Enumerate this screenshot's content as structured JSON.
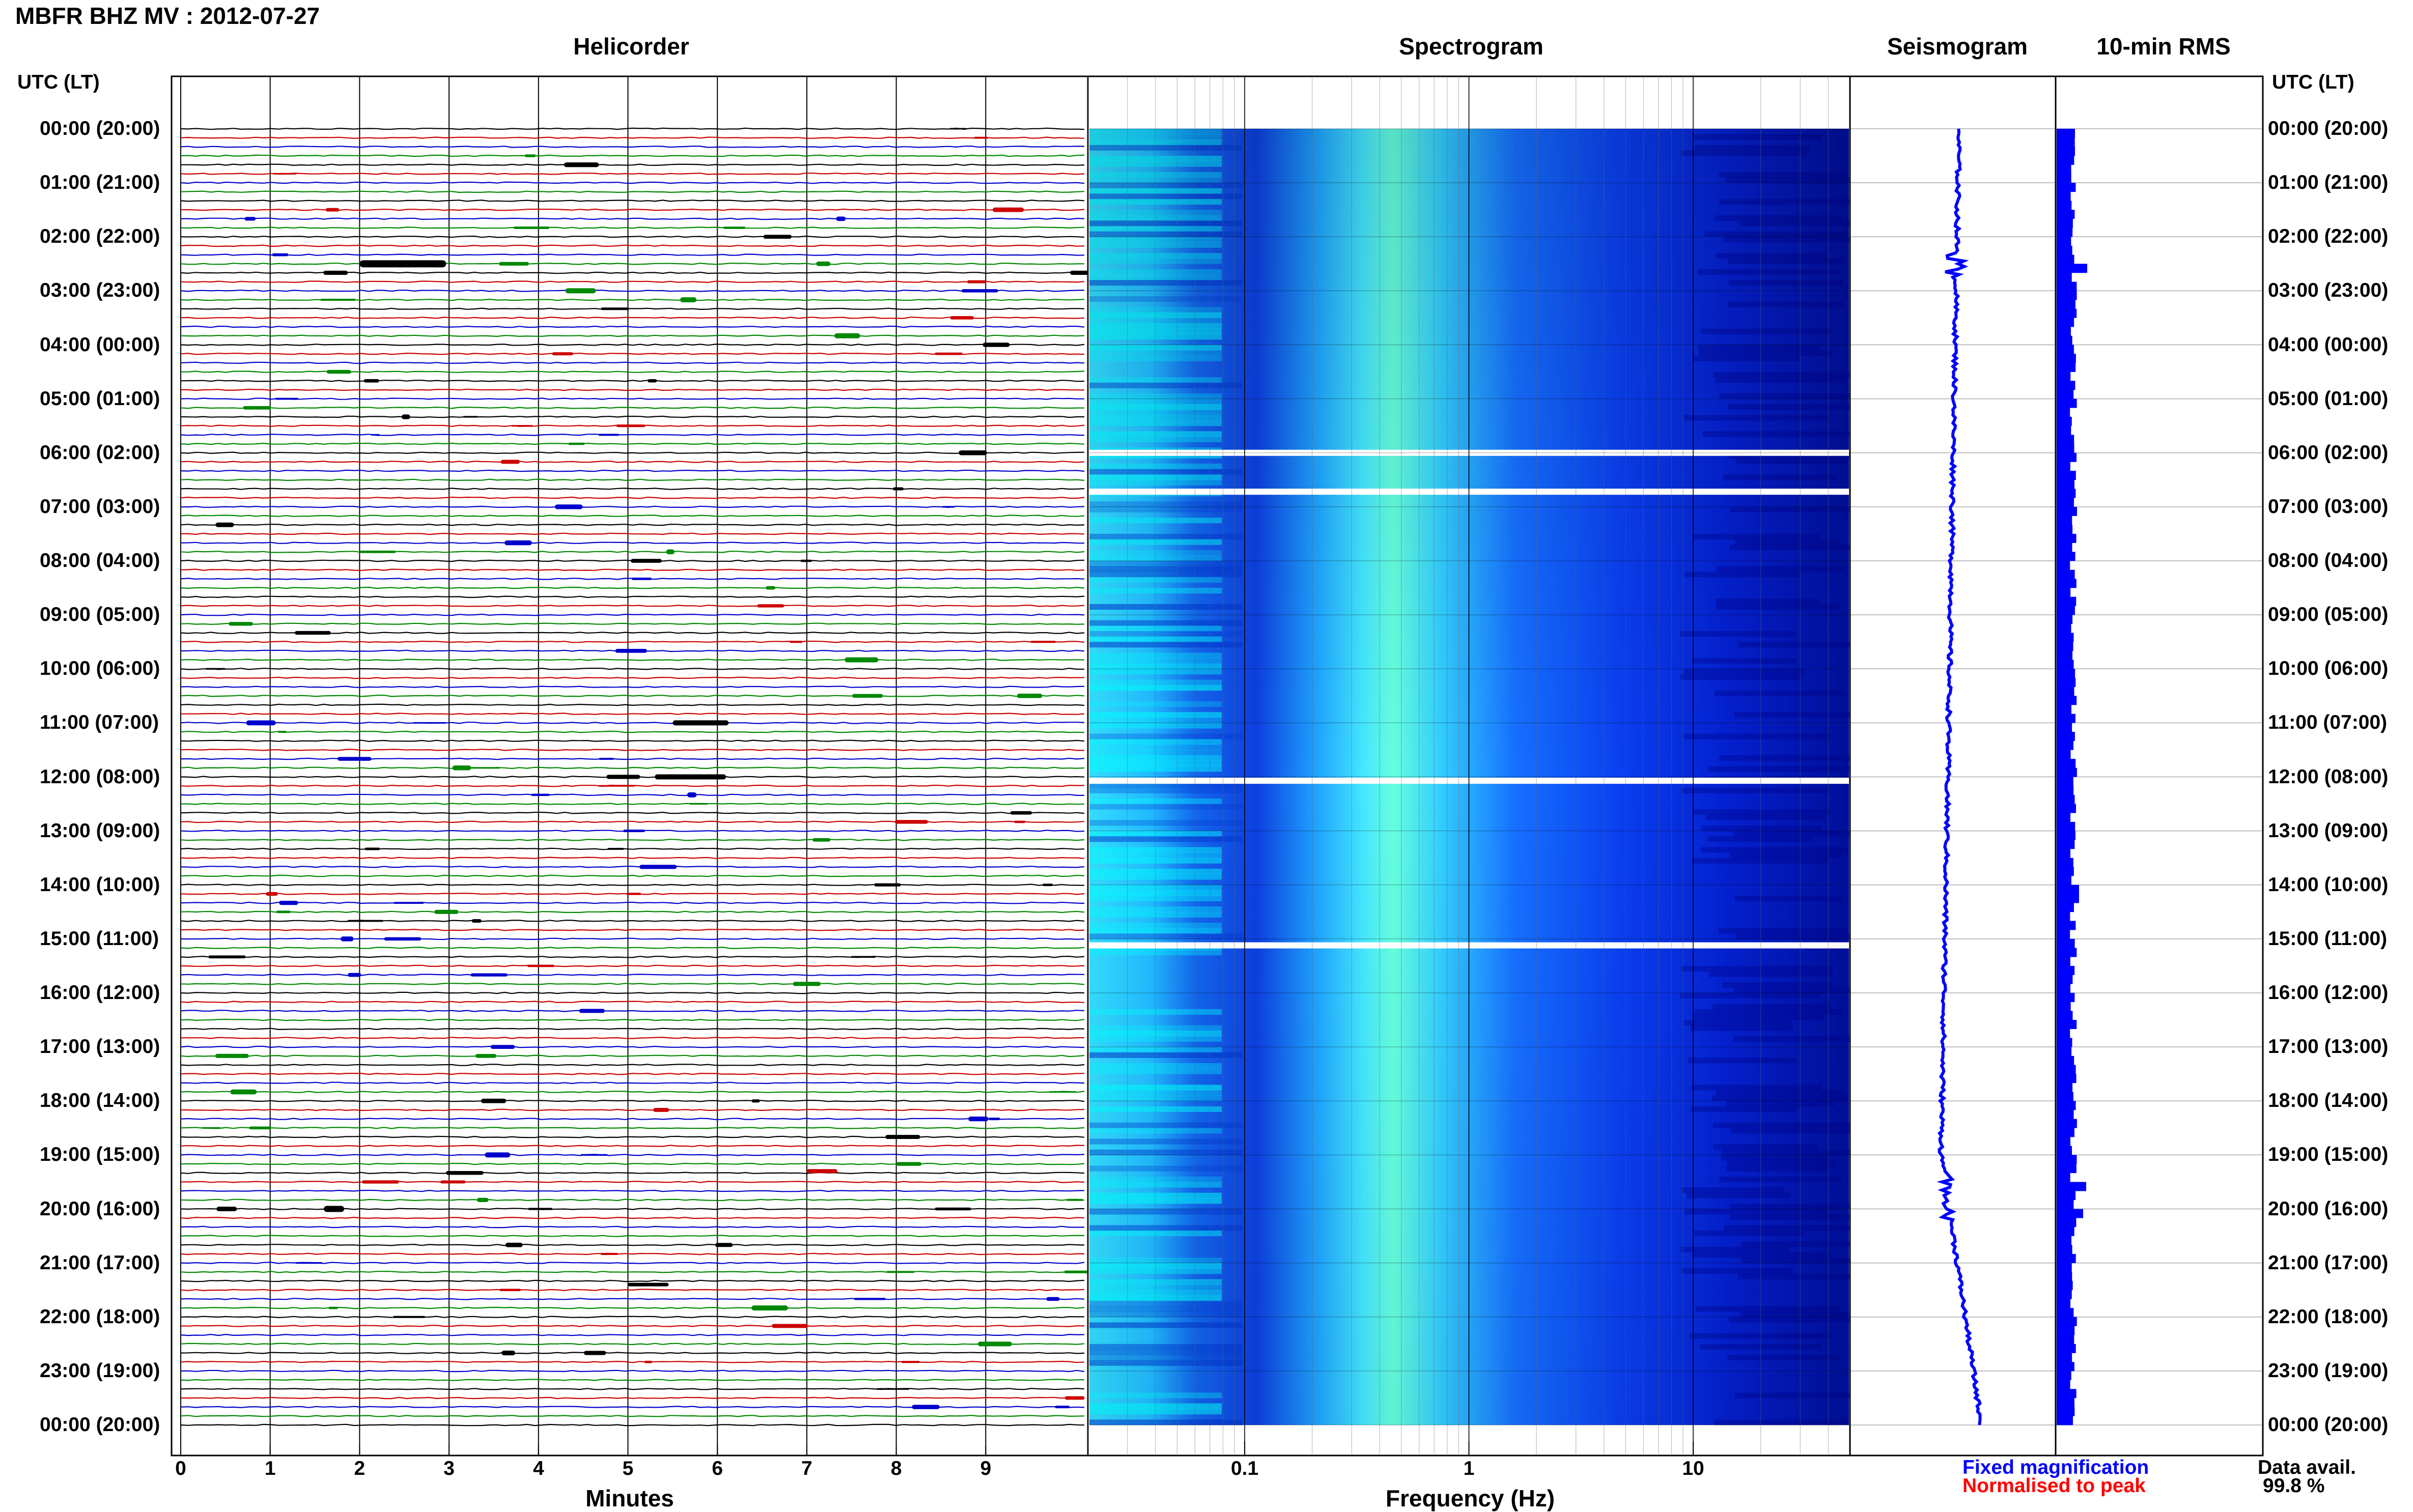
{
  "station_title": "MBFR BHZ MV : 2012-07-27",
  "panels": {
    "helicorder": "Helicorder",
    "spectrogram": "Spectrogram",
    "seismogram": "Seismogram",
    "rms": "10-min RMS"
  },
  "time_axis_header": "UTC (LT)",
  "time_labels": [
    "00:00 (20:00)",
    "01:00 (21:00)",
    "02:00 (22:00)",
    "03:00 (23:00)",
    "04:00 (00:00)",
    "05:00 (01:00)",
    "06:00 (02:00)",
    "07:00 (03:00)",
    "08:00 (04:00)",
    "09:00 (05:00)",
    "10:00 (06:00)",
    "11:00 (07:00)",
    "12:00 (08:00)",
    "13:00 (09:00)",
    "14:00 (10:00)",
    "15:00 (11:00)",
    "16:00 (12:00)",
    "17:00 (13:00)",
    "18:00 (14:00)",
    "19:00 (15:00)",
    "20:00 (16:00)",
    "21:00 (17:00)",
    "22:00 (18:00)",
    "23:00 (19:00)",
    "00:00 (20:00)"
  ],
  "x_axes": {
    "minutes_title": "Minutes",
    "minutes_ticks": [
      "0",
      "1",
      "2",
      "3",
      "4",
      "5",
      "6",
      "7",
      "8",
      "9"
    ],
    "frequency_title": "Frequency (Hz)",
    "frequency_ticks": [
      "0.1",
      "1",
      "10"
    ]
  },
  "legend": {
    "fixed": "Fixed magnification",
    "normalised": "Normalised to peak",
    "fixed_color": "#0000ff",
    "normalised_color": "#ff0000"
  },
  "data_availability": {
    "label": "Data avail.",
    "value": "99.8 %"
  },
  "colors": {
    "trace_cycle": [
      "#000000",
      "#cc0000",
      "#0000cc",
      "#008800"
    ],
    "spectrogram_low": "#0000aa",
    "spectrogram_high": "#00ffff",
    "rms_bar": "#0000ff",
    "seismogram": "#0000ff"
  },
  "chart_data": [
    {
      "type": "heatmap",
      "title": "Helicorder",
      "xlabel": "Minutes",
      "x_ticks": [
        0,
        1,
        2,
        3,
        4,
        5,
        6,
        7,
        8,
        9
      ],
      "xlim": [
        0,
        10
      ],
      "rows_per_hour": 6,
      "hours": 24,
      "trace_color_cycle": [
        "black",
        "red",
        "blue",
        "green"
      ]
    },
    {
      "type": "heatmap",
      "title": "Spectrogram",
      "xlabel": "Frequency (Hz)",
      "x_scale": "log",
      "x_ticks": [
        0.1,
        1,
        10
      ],
      "xlim": [
        0.02,
        50
      ],
      "peak_frequency_hz": 0.35,
      "gaps_utc": [
        "06:15",
        "06:35",
        "12:05",
        "15:10"
      ]
    },
    {
      "type": "line",
      "title": "Seismogram",
      "description_series": "continuous daily trace"
    },
    {
      "type": "bar",
      "title": "10-min RMS",
      "bars_per_hour": 6,
      "notable_peaks_utc": [
        "02:30",
        "19:30",
        "20:00"
      ]
    }
  ]
}
